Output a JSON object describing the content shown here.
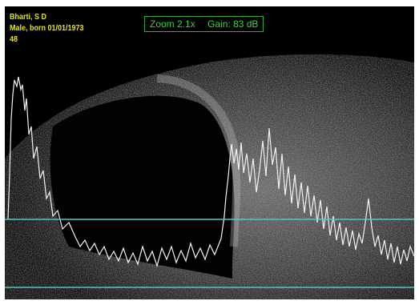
{
  "patient": {
    "name": "Bharti, S D",
    "sex_dob": "Male, born 01/01/1973",
    "frame_number": "48"
  },
  "readout": {
    "zoom": "Zoom 2.1x",
    "gain": "Gain: 83 dB"
  },
  "colors": {
    "background": "#000000",
    "patient_text": "#e8e600",
    "readout_text": "#3fd23f",
    "readout_border": "#2fae2f",
    "gate_lines": "#4fc8c8",
    "echo_trace": "#f2f2f2"
  },
  "gate_markers": [
    "upper-gate-line",
    "lower-gate-line"
  ]
}
